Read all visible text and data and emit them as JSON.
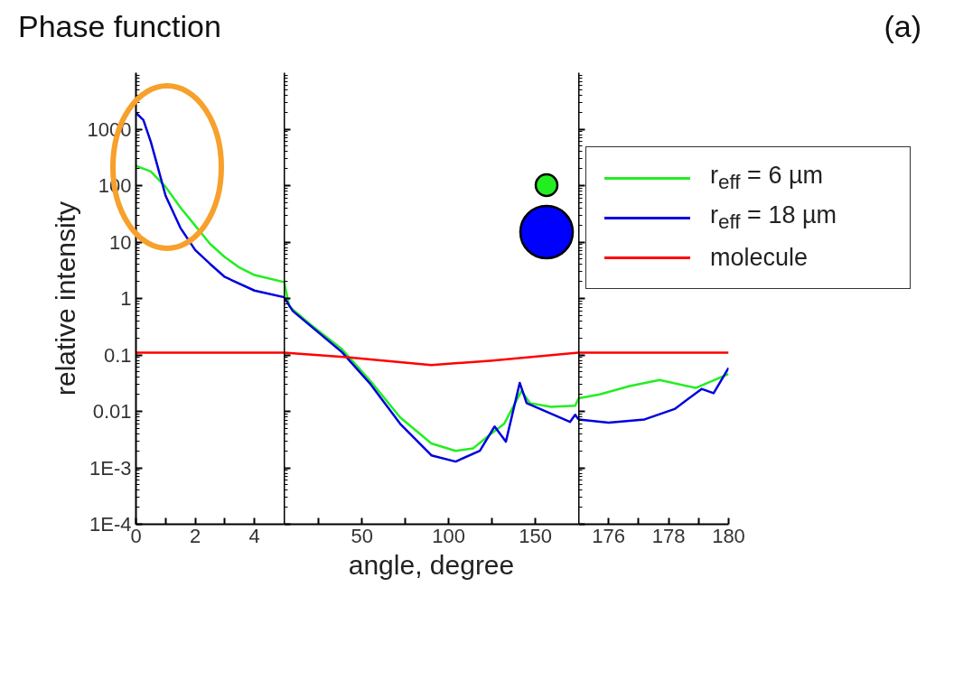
{
  "chart_data": [
    {
      "type": "line",
      "title": "Phase function",
      "ylabel": "relative intensity",
      "annotations": [
        "(a)"
      ],
      "log": "y",
      "xlim": [
        0,
        5
      ],
      "xticks": [
        0,
        {
          "value": 1,
          "label": null
        },
        2,
        {
          "value": 3,
          "label": null
        },
        4
      ],
      "ylim": [
        0.0001,
        10000
      ],
      "yticks": [
        {
          "value": 0.0001,
          "label": "1E-4"
        },
        {
          "value": 0.001,
          "label": "1E-3"
        },
        0.01,
        0.1,
        1,
        10,
        100,
        1000
      ],
      "series": [
        {
          "color": "#22ee22",
          "x": [
            0,
            0.5,
            1,
            1.5,
            2,
            2.5,
            3,
            3.5,
            4,
            5
          ],
          "values": [
            224,
            178,
            95,
            41,
            19.5,
            9.3,
            5.4,
            3.5,
            2.6,
            1.95
          ]
        },
        {
          "color": "#0000dd",
          "x": [
            0,
            0.25,
            0.5,
            0.75,
            1,
            1.5,
            2,
            2.5,
            3,
            4,
            5
          ],
          "values": [
            1950,
            1450,
            600,
            200,
            66,
            17.8,
            7.2,
            4.1,
            2.4,
            1.38,
            1.05
          ]
        },
        {
          "color": "#ff0000",
          "x": [
            0,
            5
          ],
          "values": [
            0.11,
            0.11
          ]
        }
      ]
    },
    {
      "type": "line",
      "xlabel": "angle, degree",
      "log": "y",
      "tick_labels": "x",
      "xlim": [
        5,
        175
      ],
      "xticks": [
        {
          "value": 25,
          "label": null
        },
        50,
        {
          "value": 75,
          "label": null
        },
        100,
        {
          "value": 125,
          "label": null
        },
        150
      ],
      "ylim": [
        0.0001,
        10000
      ],
      "yticks": [
        0.0001,
        0.001,
        0.01,
        0.1,
        1,
        10,
        100,
        1000
      ],
      "series": [
        {
          "color": "#22ee22",
          "x": [
            5,
            8,
            20,
            38,
            55,
            72,
            90,
            104,
            114,
            124,
            132,
            142,
            147,
            159,
            173,
            175
          ],
          "values": [
            1.95,
            0.72,
            0.35,
            0.13,
            0.034,
            0.0078,
            0.0027,
            0.002,
            0.0022,
            0.0039,
            0.006,
            0.023,
            0.014,
            0.012,
            0.0126,
            0.017
          ]
        },
        {
          "color": "#0000dd",
          "x": [
            5,
            10,
            38,
            55,
            72,
            90,
            104,
            118,
            126.5,
            133,
            141,
            145,
            170,
            173,
            175
          ],
          "values": [
            1.05,
            0.6,
            0.115,
            0.03,
            0.006,
            0.00166,
            0.00129,
            0.002,
            0.0054,
            0.0029,
            0.032,
            0.014,
            0.0065,
            0.0087,
            0.0072
          ]
        },
        {
          "color": "#ff0000",
          "x": [
            5,
            41,
            90,
            124,
            175
          ],
          "values": [
            0.11,
            0.091,
            0.066,
            0.079,
            0.11
          ]
        }
      ]
    },
    {
      "type": "line",
      "log": "y",
      "tick_labels": "x",
      "legend": "top right",
      "xlim": [
        175,
        180
      ],
      "xticks": [
        176,
        {
          "value": 177,
          "label": null
        },
        178,
        {
          "value": 179,
          "label": null
        },
        180
      ],
      "ylim": [
        0.0001,
        10000
      ],
      "yticks": [
        0.0001,
        0.001,
        0.01,
        0.1,
        1,
        10,
        100,
        1000
      ],
      "series": [
        {
          "name": "r$_{eff}$ = 6 µm",
          "color": "#22ee22",
          "x": [
            175,
            175.7,
            176.7,
            177.7,
            178.9,
            180
          ],
          "values": [
            0.017,
            0.02,
            0.028,
            0.036,
            0.026,
            0.046
          ]
        },
        {
          "name": "r$_{eff}$ = 18 µm",
          "color": "#0000dd",
          "x": [
            175,
            176,
            177.2,
            178.2,
            179.1,
            179.5,
            180
          ],
          "values": [
            0.0072,
            0.0063,
            0.0072,
            0.011,
            0.025,
            0.021,
            0.059
          ]
        },
        {
          "name": "molecule",
          "color": "#ff0000",
          "x": [
            175,
            180
          ],
          "values": [
            0.11,
            0.11
          ]
        }
      ]
    }
  ]
}
